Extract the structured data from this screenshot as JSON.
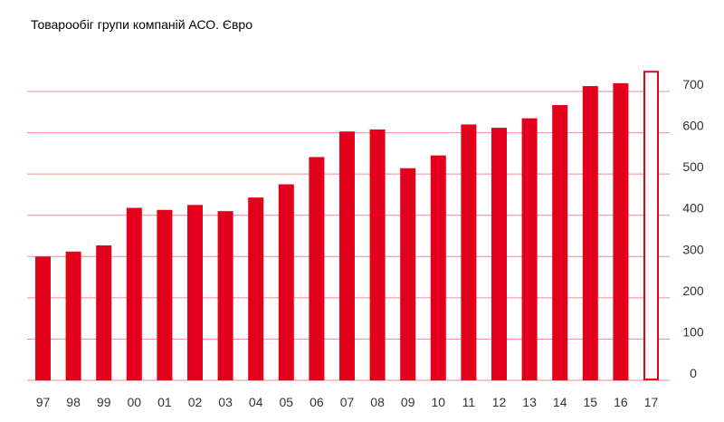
{
  "chart_data": {
    "type": "bar",
    "title": "Товарообіг групи компаній АСО. Євро",
    "categories": [
      "97",
      "98",
      "99",
      "00",
      "01",
      "02",
      "03",
      "04",
      "05",
      "06",
      "07",
      "08",
      "09",
      "10",
      "11",
      "12",
      "13",
      "14",
      "15",
      "16",
      "17"
    ],
    "values": [
      300,
      312,
      327,
      418,
      413,
      425,
      410,
      443,
      475,
      541,
      603,
      608,
      514,
      545,
      620,
      612,
      635,
      667,
      713,
      720,
      750
    ],
    "outlined_categories": [
      "17"
    ],
    "ylim": [
      0,
      700
    ],
    "yticks": [
      0,
      100,
      200,
      300,
      400,
      500,
      600,
      700
    ],
    "y_axis_side": "right",
    "grid": true,
    "xlabel": "",
    "ylabel": "",
    "colors": {
      "bar": "#e2001a",
      "grid": "#f08a94",
      "tick_text": "#333333"
    }
  }
}
